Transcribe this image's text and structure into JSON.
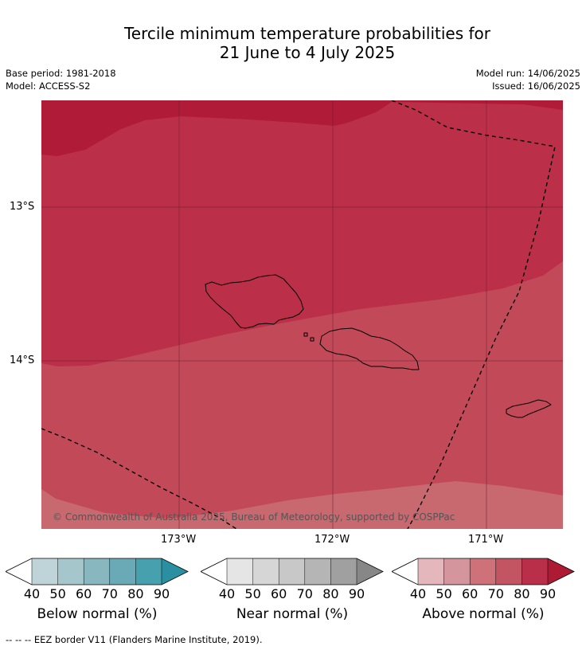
{
  "title": {
    "line1": "Tercile minimum temperature probabilities for",
    "line2": "21 June to 4 July 2025"
  },
  "meta": {
    "base_period": "Base period: 1981-2018",
    "model": "Model: ACCESS-S2",
    "model_run": "Model run: 14/06/2025",
    "issued": "Issued: 16/06/2025"
  },
  "map": {
    "lat_labels": [
      "13°S",
      "14°S"
    ],
    "lon_labels": [
      "173°W",
      "172°W",
      "171°W"
    ],
    "copyright": "© Commonwealth of Australia 2025, Bureau of Meteorology, supported by COSPPac",
    "colors": {
      "above_90": "#b01c37",
      "above_80": "#bb2f48",
      "above_70": "#c24a58",
      "above_60": "#c8686f",
      "gridline": "#6a2030",
      "coastline": "#000000",
      "eez": "#000000"
    },
    "regions": [
      "above-90",
      "above-80",
      "above-70",
      "above-60"
    ],
    "islands": [
      "savaii",
      "upolu",
      "tutuila"
    ]
  },
  "colorbars": [
    {
      "id": "below",
      "title": "Below normal (%)",
      "ticks": [
        "40",
        "50",
        "60",
        "70",
        "80",
        "90"
      ],
      "colors": [
        "#ffffff",
        "#bed4d9",
        "#a5c6cb",
        "#88b7c0",
        "#69aab6",
        "#46a0ad",
        "#2a8fa0"
      ]
    },
    {
      "id": "near",
      "title": "Near normal (%)",
      "ticks": [
        "40",
        "50",
        "60",
        "70",
        "80",
        "90"
      ],
      "colors": [
        "#ffffff",
        "#e5e5e5",
        "#d6d6d6",
        "#c8c8c8",
        "#b5b5b5",
        "#a0a0a0",
        "#878787"
      ]
    },
    {
      "id": "above",
      "title": "Above normal (%)",
      "ticks": [
        "40",
        "50",
        "60",
        "70",
        "80",
        "90"
      ],
      "colors": [
        "#ffffff",
        "#e3b7bb",
        "#d5959c",
        "#ce7178",
        "#c35462",
        "#b92f49",
        "#ac1a34"
      ]
    }
  ],
  "footnote": "--  --  -- EEZ border V11 (Flanders Marine Institute, 2019)."
}
